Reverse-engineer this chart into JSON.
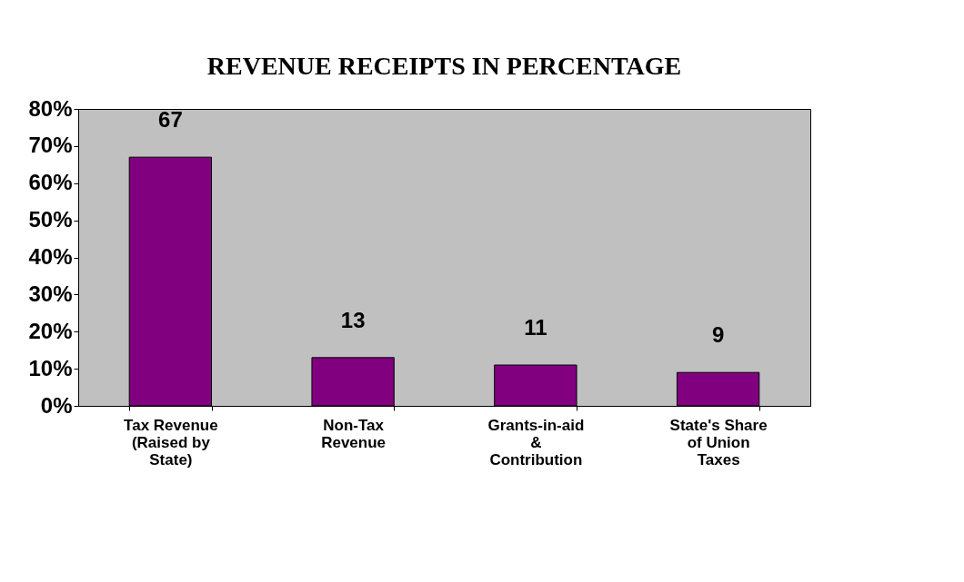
{
  "chart_data": {
    "type": "bar",
    "title": "REVENUE RECEIPTS IN PERCENTAGE",
    "categories": [
      "Tax Revenue (Raised by State)",
      "Non-Tax Revenue",
      "Grants-in-aid & Contribution",
      "State's Share of Union Taxes"
    ],
    "values": [
      67,
      13,
      11,
      9
    ],
    "color": "#800080",
    "ylim": [
      0,
      80
    ],
    "yticks": [
      {
        "value": 0,
        "label": "0%"
      },
      {
        "value": 10,
        "label": "10%"
      },
      {
        "value": 20,
        "label": "20%"
      },
      {
        "value": 30,
        "label": "30%"
      },
      {
        "value": 40,
        "label": "40%"
      },
      {
        "value": 50,
        "label": "50%"
      },
      {
        "value": 60,
        "label": "60%"
      },
      {
        "value": 70,
        "label": "70%"
      },
      {
        "value": 80,
        "label": "80%"
      }
    ],
    "data_labels": true,
    "grid": false
  }
}
